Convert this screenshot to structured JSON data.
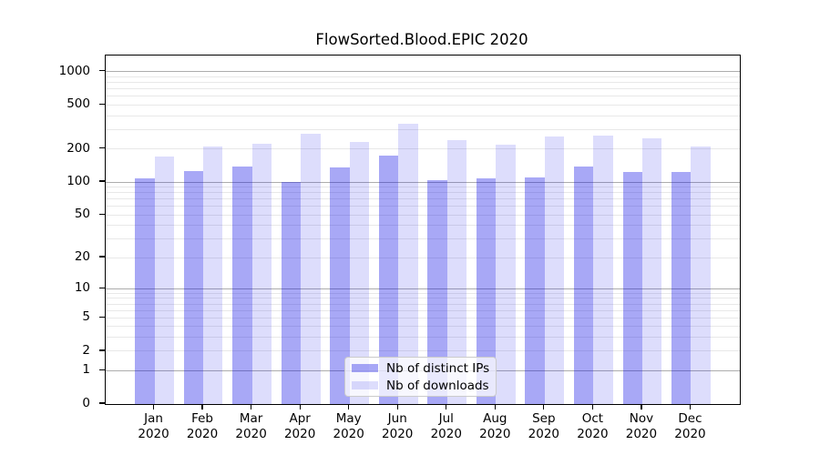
{
  "chart_data": {
    "type": "bar",
    "title": "FlowSorted.Blood.EPIC 2020",
    "categories": [
      "Jan 2020",
      "Feb 2020",
      "Mar 2020",
      "Apr 2020",
      "May 2020",
      "Jun 2020",
      "Jul 2020",
      "Aug 2020",
      "Sep 2020",
      "Oct 2020",
      "Nov 2020",
      "Dec 2020"
    ],
    "series": [
      {
        "name": "Nb of distinct IPs",
        "color": "#0000e6",
        "alpha": 0.34,
        "solid_color": "#a8a8f7",
        "values": [
          108,
          126,
          139,
          101,
          136,
          174,
          104,
          107,
          110,
          138,
          124,
          123
        ]
      },
      {
        "name": "Nb of downloads",
        "color": "#0000e6",
        "alpha": 0.135,
        "solid_color": "#dcdcfc",
        "values": [
          172,
          210,
          221,
          272,
          231,
          340,
          239,
          219,
          259,
          262,
          251,
          212
        ]
      }
    ],
    "xlabel": "",
    "ylabel": "",
    "yscale": "log1p",
    "y_ticks": [
      0,
      1,
      2,
      5,
      10,
      20,
      50,
      100,
      200,
      500,
      1000
    ],
    "y_major_gridlines": [
      1,
      10,
      100,
      1000
    ],
    "ylim": [
      0,
      1400
    ],
    "xlim": [
      -1,
      12
    ],
    "bar_width": 0.4,
    "grid": true,
    "legend_position": "lower center"
  },
  "colors": {
    "grid_major": "#adadad",
    "grid_minor": "#e8e8e8",
    "axis": "#000000",
    "text": "#000000",
    "legend_border": "#cbcbcb"
  }
}
